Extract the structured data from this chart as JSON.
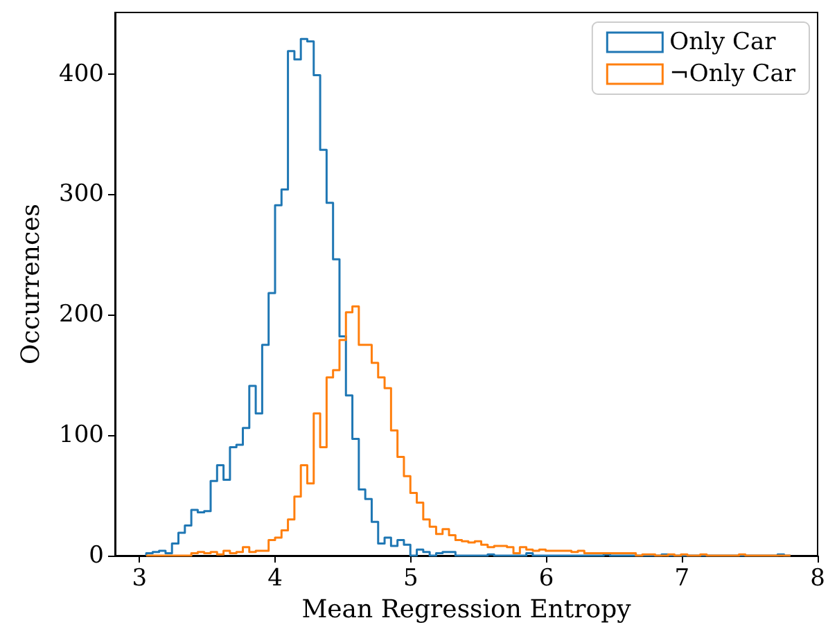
{
  "chart_data": {
    "type": "histogram",
    "xlabel": "Mean Regression Entropy",
    "ylabel": "Occurrences",
    "bins": [
      3.05,
      3.0975,
      3.145,
      3.1925,
      3.24,
      3.2875,
      3.335,
      3.3825,
      3.43,
      3.4775,
      3.525,
      3.5725,
      3.62,
      3.6675,
      3.715,
      3.7625,
      3.81,
      3.8575,
      3.905,
      3.9525,
      4.0,
      4.0475,
      4.095,
      4.1425,
      4.19,
      4.2375,
      4.285,
      4.3325,
      4.38,
      4.4275,
      4.475,
      4.5225,
      4.57,
      4.6175,
      4.665,
      4.7125,
      4.76,
      4.8075,
      4.855,
      4.9025,
      4.95,
      4.9975,
      5.045,
      5.0925,
      5.14,
      5.1875,
      5.235,
      5.2825,
      5.33,
      5.3775,
      5.425,
      5.4725,
      5.52,
      5.5675,
      5.615,
      5.6625,
      5.71,
      5.7575,
      5.805,
      5.8525,
      5.9,
      5.9475,
      5.995,
      6.0425,
      6.09,
      6.1375,
      6.185,
      6.2325,
      6.28,
      6.3275,
      6.375,
      6.4225,
      6.47,
      6.5175,
      6.565,
      6.6125,
      6.66,
      6.7075,
      6.755,
      6.8025,
      6.85,
      6.8975,
      6.945,
      6.9925,
      7.04,
      7.0875,
      7.135,
      7.1825,
      7.23,
      7.2775,
      7.325,
      7.3725,
      7.42,
      7.4675,
      7.515,
      7.5625,
      7.61,
      7.6575,
      7.705,
      7.7525,
      7.8
    ],
    "series": [
      {
        "name": "Only Car",
        "color": "#1f77b4",
        "values": [
          2,
          3,
          4,
          2,
          10,
          19,
          25,
          38,
          36,
          37,
          62,
          75,
          63,
          90,
          92,
          106,
          141,
          118,
          175,
          218,
          291,
          304,
          419,
          412,
          429,
          427,
          399,
          337,
          293,
          246,
          182,
          133,
          97,
          55,
          47,
          28,
          10,
          15,
          8,
          13,
          9,
          0,
          5,
          3,
          0,
          2,
          3,
          3,
          0,
          0,
          0,
          0,
          0,
          1,
          0,
          0,
          0,
          0,
          0,
          2,
          0,
          0,
          0,
          0,
          0,
          0,
          0,
          0,
          0,
          0,
          0,
          1,
          0,
          0,
          0,
          0,
          0,
          0,
          0,
          0,
          1,
          0,
          0,
          0,
          0,
          0,
          0,
          0,
          0,
          0,
          0,
          0,
          0,
          0,
          0,
          0,
          0,
          0,
          1,
          0
        ]
      },
      {
        "name": "¬Only Car",
        "color": "#ff7f0e",
        "values": [
          0,
          0,
          0,
          0,
          0,
          0,
          0,
          2,
          3,
          2,
          3,
          1,
          4,
          2,
          3,
          7,
          3,
          4,
          4,
          13,
          15,
          21,
          30,
          49,
          75,
          60,
          118,
          90,
          148,
          154,
          179,
          202,
          207,
          175,
          175,
          160,
          148,
          139,
          104,
          82,
          66,
          52,
          44,
          30,
          24,
          18,
          22,
          17,
          13,
          12,
          11,
          12,
          9,
          7,
          8,
          8,
          7,
          2,
          7,
          5,
          4,
          5,
          4,
          4,
          4,
          4,
          3,
          4,
          2,
          2,
          2,
          2,
          2,
          2,
          2,
          2,
          0,
          1,
          1,
          0,
          0,
          1,
          0,
          1,
          0,
          0,
          1,
          0,
          0,
          0,
          0,
          0,
          1,
          0,
          0,
          0,
          0,
          0,
          0,
          0
        ]
      }
    ],
    "xlim": [
      2.82,
      8
    ],
    "xticks": [
      3,
      4,
      5,
      6,
      7,
      8
    ],
    "ylim": [
      0,
      451
    ],
    "yticks": [
      0,
      100,
      200,
      300,
      400
    ],
    "legend": "top right"
  }
}
